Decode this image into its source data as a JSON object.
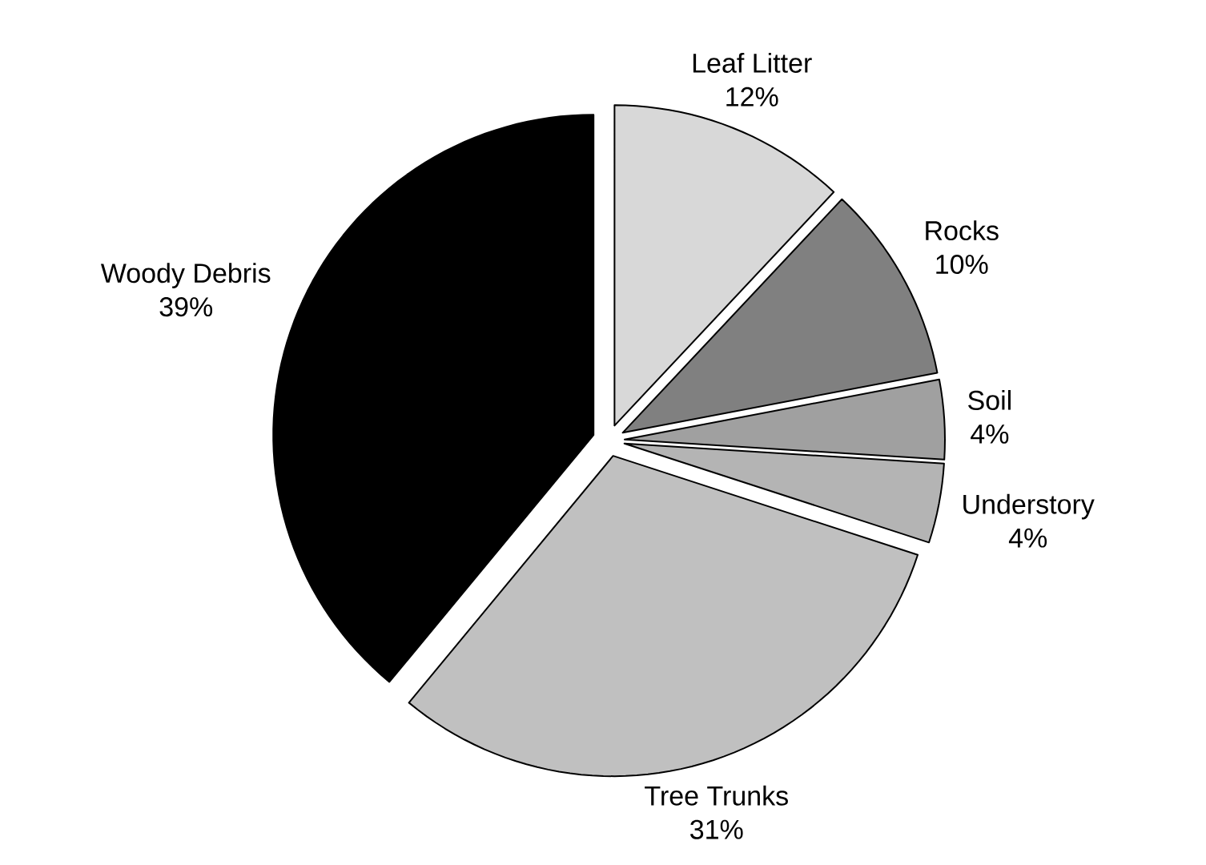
{
  "chart_data": {
    "type": "pie",
    "categories": [
      "Leaf Litter",
      "Rocks",
      "Soil",
      "Understory",
      "Tree Trunks",
      "Woody Debris"
    ],
    "values": [
      12,
      10,
      4,
      4,
      31,
      39
    ],
    "value_labels": [
      "12%",
      "10%",
      "4%",
      "4%",
      "31%",
      "39%"
    ],
    "colors": [
      "#d8d8d8",
      "#808080",
      "#a0a0a0",
      "#b4b4b4",
      "#c0c0c0",
      "#000000"
    ]
  }
}
